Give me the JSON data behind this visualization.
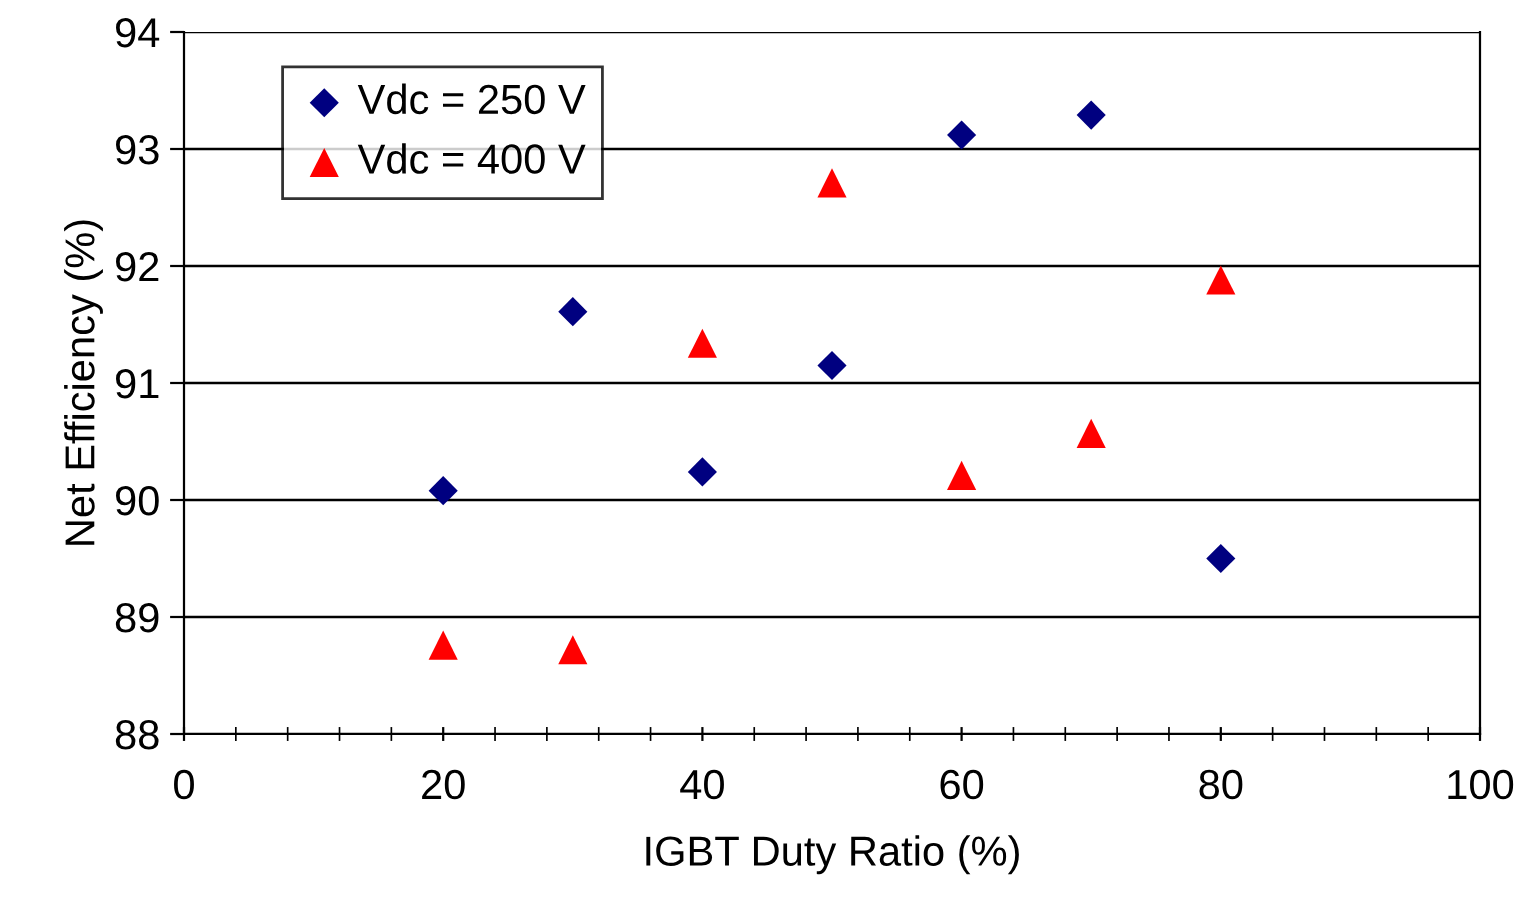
{
  "chart_data": {
    "type": "scatter",
    "xlabel": "IGBT Duty Ratio (%)",
    "ylabel": "Net Efficiency (%)",
    "x": [
      20,
      30,
      40,
      50,
      60,
      70,
      80
    ],
    "series": [
      {
        "name": "Vdc = 250 V",
        "color": "#000080",
        "marker": "diamond",
        "values": [
          90.08,
          91.61,
          90.24,
          91.15,
          93.12,
          93.29,
          89.5
        ]
      },
      {
        "name": "Vdc = 400 V",
        "color": "#ff0000",
        "marker": "triangle",
        "values": [
          88.76,
          88.72,
          91.34,
          92.71,
          90.21,
          90.57,
          91.88
        ]
      }
    ],
    "xlim": [
      0,
      100
    ],
    "xticks": [
      0,
      20,
      40,
      60,
      80,
      100
    ],
    "ylim": [
      88,
      94
    ],
    "yticks": [
      88,
      89,
      90,
      91,
      92,
      93,
      94
    ],
    "grid": "y",
    "legend": "top left"
  }
}
